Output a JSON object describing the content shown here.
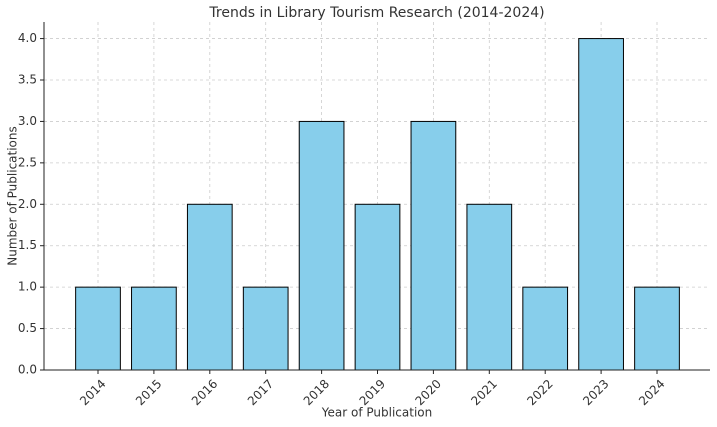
{
  "chart_data": {
    "type": "bar",
    "title": "Trends in Library Tourism Research (2014-2024)",
    "x_label": "Year of Publication",
    "y_label": "Number of Publications",
    "categories": [
      "2014",
      "2015",
      "2016",
      "2017",
      "2018",
      "2019",
      "2020",
      "2021",
      "2022",
      "2023",
      "2024"
    ],
    "values": [
      1,
      1,
      2,
      1,
      3,
      2,
      3,
      2,
      1,
      4,
      1
    ],
    "color": "#87ceeb",
    "edge_color": "#000000",
    "ylim": [
      0,
      4.2
    ],
    "yticks": [
      {
        "value": 0,
        "label": "0.0"
      },
      {
        "value": 0.5,
        "label": "0.5"
      },
      {
        "value": 1,
        "label": "1.0"
      },
      {
        "value": 1.5,
        "label": "1.5"
      },
      {
        "value": 2,
        "label": "2.0"
      },
      {
        "value": 2.5,
        "label": "2.5"
      },
      {
        "value": 3,
        "label": "3.0"
      },
      {
        "value": 3.5,
        "label": "3.5"
      },
      {
        "value": 4,
        "label": "4.0"
      }
    ],
    "grid": true
  }
}
